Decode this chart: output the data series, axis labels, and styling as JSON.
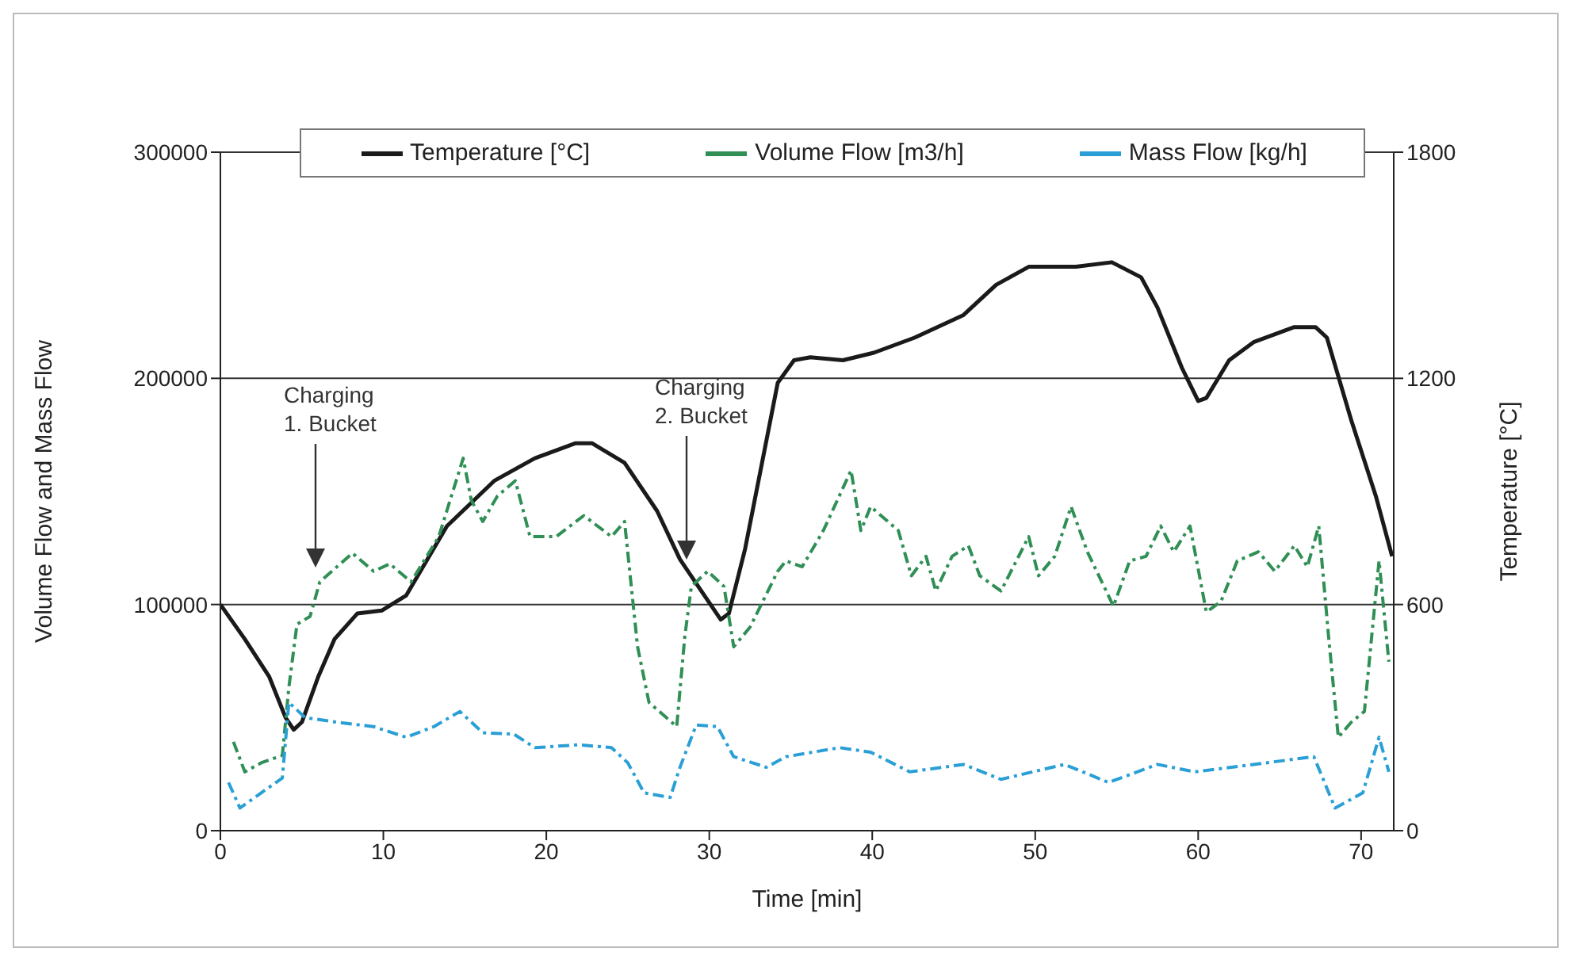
{
  "chart_data": {
    "type": "line",
    "xlabel": "Time [min]",
    "ylabel": "Volume Flow and Mass Flow",
    "y2label": "Temperature [°C]",
    "xlim": [
      0,
      72
    ],
    "xticks": [
      0,
      10,
      20,
      30,
      40,
      50,
      60,
      70
    ],
    "ylim": [
      0,
      300000
    ],
    "yticks": [
      0,
      100000,
      200000,
      300000
    ],
    "y2lim": [
      0,
      1800
    ],
    "y2ticks": [
      0,
      600,
      1200,
      1800
    ],
    "grid": "y",
    "legend": "top",
    "marker": "none",
    "annotations": [
      "Charging 1. Bucket",
      "Charging 2. Bucket"
    ],
    "series": [
      {
        "name": "Temperature [°C]",
        "color": "#1a1a1a",
        "axis": "y2",
        "line_style": "solid",
        "x": [
          0,
          1.5,
          3,
          4,
          4.5,
          5,
          6,
          7,
          8.4,
          9.9,
          11.4,
          13.9,
          16.8,
          19.3,
          21.8,
          22.8,
          24.8,
          26.8,
          28.2,
          29.2,
          30.7,
          31.2,
          32.2,
          33.2,
          34.2,
          35.2,
          36.2,
          38.2,
          40.1,
          42.6,
          45.6,
          47.6,
          49.6,
          52.5,
          54.7,
          56.5,
          57.5,
          59,
          60,
          60.5,
          61.9,
          63.4,
          65.9,
          67.2,
          67.9,
          69.4,
          70.9,
          71.9
        ],
        "values": [
          600,
          508,
          408,
          300,
          268,
          288,
          408,
          508,
          576,
          584,
          624,
          808,
          928,
          988,
          1028,
          1028,
          976,
          848,
          720,
          656,
          560,
          576,
          748,
          968,
          1188,
          1248,
          1256,
          1248,
          1268,
          1308,
          1368,
          1448,
          1496,
          1496,
          1508,
          1468,
          1388,
          1228,
          1140,
          1148,
          1248,
          1296,
          1336,
          1336,
          1308,
          1088,
          888,
          728
        ]
      },
      {
        "name": "Volume Flow [m3/h]",
        "color": "#2f8f55",
        "line_style": "dashed",
        "x": [
          0.8,
          1.5,
          2.5,
          3.8,
          4.2,
          4.7,
          5.5,
          6.1,
          8.1,
          9.4,
          10.4,
          11.7,
          13.4,
          14.9,
          15.4,
          16.1,
          17,
          18.1,
          19,
          20.6,
          22.3,
          24,
          24.8,
          25.6,
          26.3,
          28,
          28.5,
          28.9,
          29.9,
          30.9,
          31.5,
          32.5,
          34.2,
          34.7,
          35.7,
          37,
          38.7,
          39.3,
          39.9,
          41.6,
          42.4,
          43.3,
          43.9,
          44.9,
          45.9,
          46.6,
          47.9,
          49.6,
          50.2,
          51.2,
          52.2,
          53.2,
          54.8,
          55.8,
          56.8,
          57.7,
          58.5,
          59.5,
          60.5,
          61.4,
          62.4,
          63.7,
          64.7,
          65.9,
          66.7,
          67.4,
          68,
          68.6,
          69.4,
          70.2,
          71.1,
          71.7
        ],
        "values": [
          39300,
          26000,
          30000,
          33300,
          63300,
          91300,
          94700,
          110000,
          122700,
          114700,
          118000,
          110000,
          130000,
          164700,
          146000,
          136700,
          148000,
          154700,
          130000,
          130000,
          139300,
          130000,
          136700,
          81300,
          56700,
          46000,
          86000,
          108000,
          114700,
          108000,
          81300,
          90000,
          114700,
          119300,
          116700,
          132700,
          159300,
          132700,
          143300,
          132700,
          112700,
          121300,
          106000,
          121300,
          126000,
          112700,
          106000,
          130000,
          112700,
          121300,
          143300,
          123300,
          99300,
          119300,
          121300,
          134700,
          123300,
          134700,
          96700,
          101300,
          119300,
          123300,
          114700,
          126000,
          116700,
          134700,
          86000,
          41300,
          48000,
          52700,
          119300,
          74700
        ]
      },
      {
        "name": "Mass Flow [kg/h]",
        "color": "#2a9fd6",
        "line_style": "dashed",
        "x": [
          0.5,
          1.2,
          2.5,
          3.8,
          4.2,
          5.2,
          7.1,
          9.4,
          11.4,
          13.1,
          14.7,
          16.1,
          18,
          19.3,
          22,
          24,
          25,
          26,
          27.6,
          28.2,
          29.2,
          30.5,
          31.5,
          33.5,
          34.7,
          38,
          39.9,
          42.3,
          45.6,
          47.9,
          51.8,
          54.5,
          57.5,
          59.8,
          63.4,
          67.1,
          68.4,
          70.1,
          71.1,
          71.7
        ],
        "values": [
          21300,
          10000,
          16700,
          23300,
          56700,
          50000,
          48000,
          46000,
          41300,
          46000,
          52700,
          43300,
          42700,
          36700,
          38000,
          36700,
          30000,
          16700,
          14700,
          28000,
          46700,
          46000,
          32700,
          28000,
          32700,
          36700,
          34700,
          26000,
          29300,
          22700,
          29300,
          21300,
          29300,
          26000,
          29300,
          32700,
          10000,
          16700,
          41300,
          26000
        ]
      }
    ]
  }
}
